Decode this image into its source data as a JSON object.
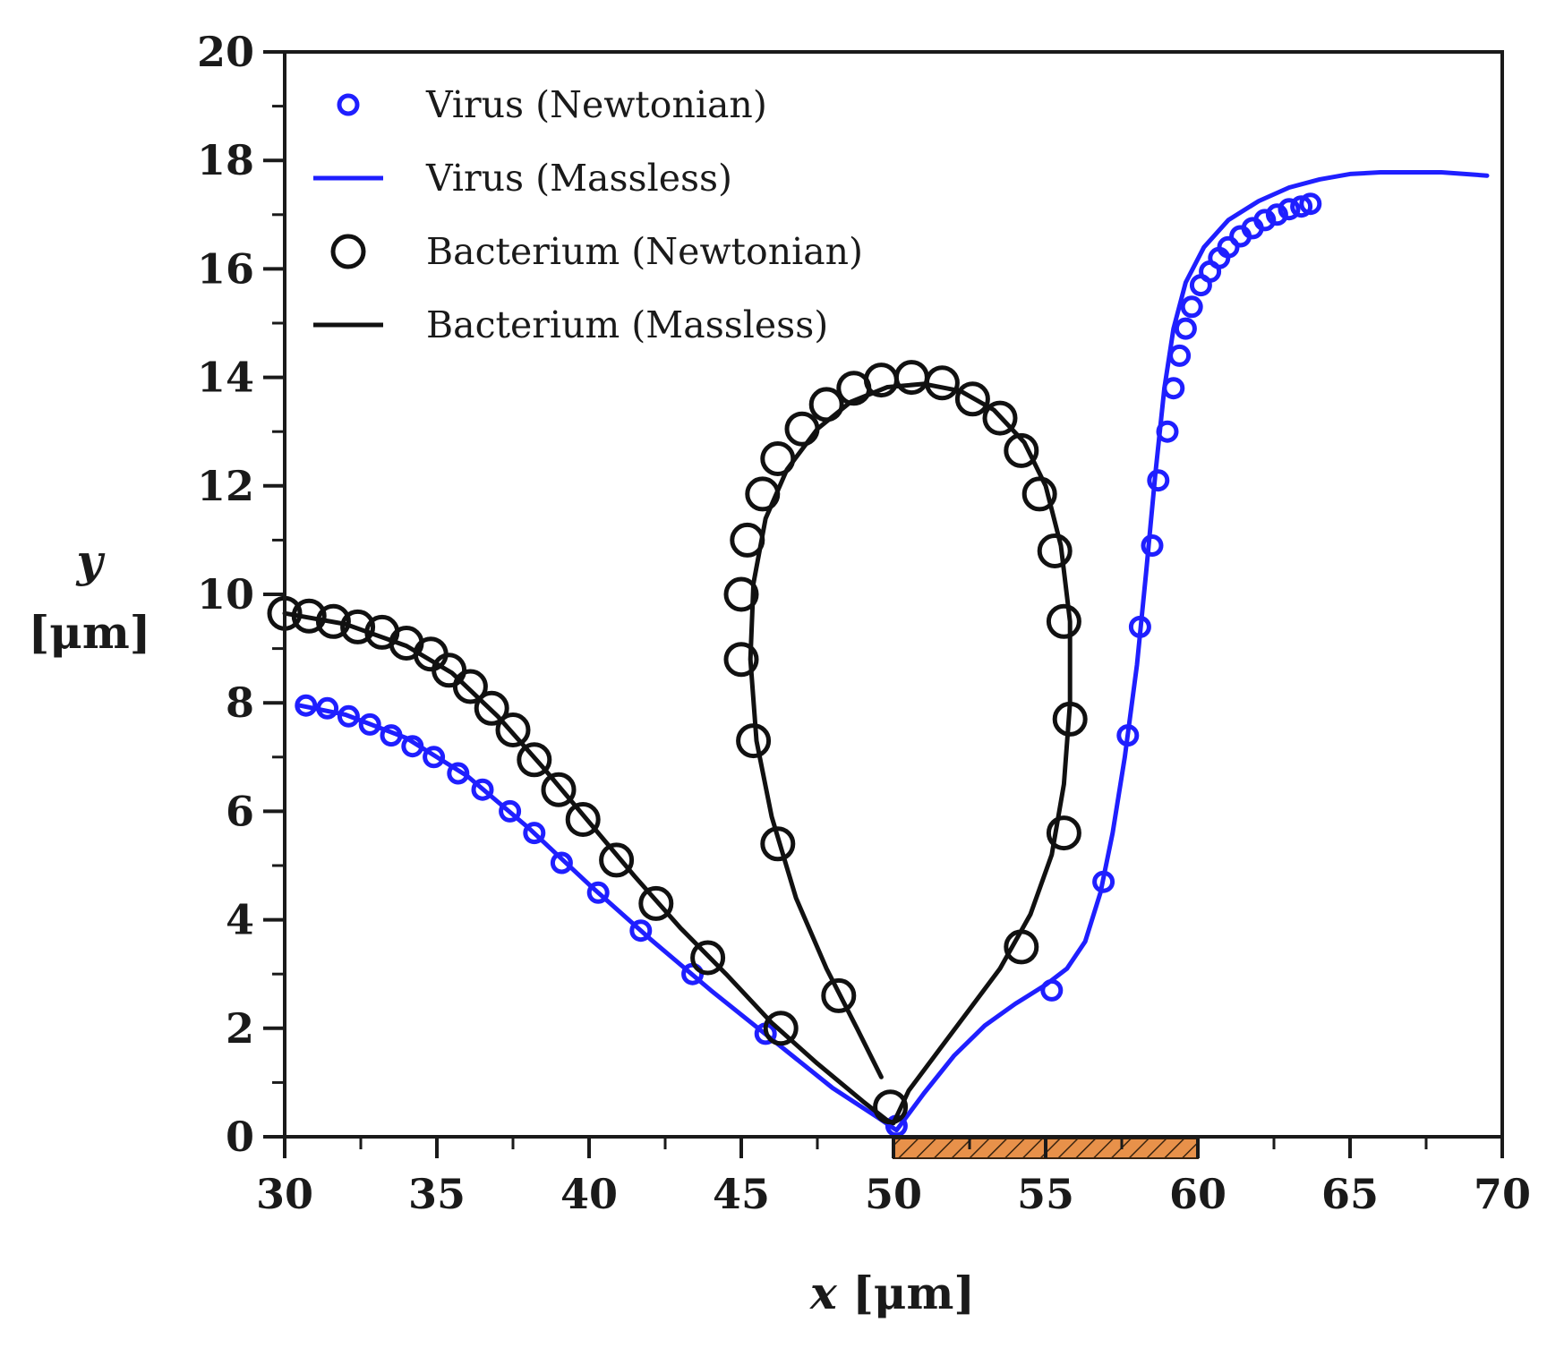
{
  "chart_data": {
    "type": "line",
    "title": "",
    "xlabel": {
      "var": "x",
      "unit": " [μm]"
    },
    "ylabel": {
      "var": "y",
      "unit": "[μm]"
    },
    "xlim": [
      30,
      70
    ],
    "ylim": [
      0,
      20
    ],
    "xticks": [
      "30",
      "35",
      "40",
      "45",
      "50",
      "55",
      "60",
      "65",
      "70"
    ],
    "yticks": [
      "0",
      "2",
      "4",
      "6",
      "8",
      "10",
      "12",
      "14",
      "16",
      "18",
      "20"
    ],
    "grid": false,
    "legend_position": "top-left",
    "hatched_region": {
      "x_start": 50,
      "x_end": 60,
      "color": "#e8914a"
    },
    "series": [
      {
        "name": "Virus (Newtonian)",
        "style": "markers",
        "marker": "small-circle",
        "color": "#1f1fff",
        "points": [
          [
            30.7,
            7.95
          ],
          [
            31.4,
            7.9
          ],
          [
            32.1,
            7.75
          ],
          [
            32.8,
            7.6
          ],
          [
            33.5,
            7.4
          ],
          [
            34.2,
            7.2
          ],
          [
            34.9,
            7.0
          ],
          [
            35.7,
            6.7
          ],
          [
            36.5,
            6.4
          ],
          [
            37.4,
            6.0
          ],
          [
            38.2,
            5.6
          ],
          [
            39.1,
            5.05
          ],
          [
            40.3,
            4.5
          ],
          [
            41.7,
            3.8
          ],
          [
            43.4,
            3.0
          ],
          [
            45.8,
            1.9
          ],
          [
            50.1,
            0.2
          ],
          [
            55.2,
            2.7
          ],
          [
            56.9,
            4.7
          ],
          [
            57.7,
            7.4
          ],
          [
            58.1,
            9.4
          ],
          [
            58.5,
            10.9
          ],
          [
            58.7,
            12.1
          ],
          [
            59.0,
            13.0
          ],
          [
            59.2,
            13.8
          ],
          [
            59.4,
            14.4
          ],
          [
            59.6,
            14.9
          ],
          [
            59.8,
            15.3
          ],
          [
            60.1,
            15.7
          ],
          [
            60.4,
            15.95
          ],
          [
            60.7,
            16.2
          ],
          [
            61.0,
            16.4
          ],
          [
            61.4,
            16.6
          ],
          [
            61.8,
            16.75
          ],
          [
            62.2,
            16.9
          ],
          [
            62.6,
            17.0
          ],
          [
            63.0,
            17.1
          ],
          [
            63.4,
            17.15
          ],
          [
            63.7,
            17.2
          ]
        ]
      },
      {
        "name": "Virus (Massless)",
        "style": "line",
        "color": "#1f1fff",
        "points": [
          [
            30.5,
            7.95
          ],
          [
            32,
            7.78
          ],
          [
            34,
            7.35
          ],
          [
            36,
            6.65
          ],
          [
            38,
            5.7
          ],
          [
            40,
            4.65
          ],
          [
            42,
            3.65
          ],
          [
            44,
            2.7
          ],
          [
            46,
            1.8
          ],
          [
            48,
            0.9
          ],
          [
            49.5,
            0.35
          ],
          [
            50.1,
            0.12
          ],
          [
            51,
            0.8
          ],
          [
            52,
            1.5
          ],
          [
            53,
            2.05
          ],
          [
            54,
            2.45
          ],
          [
            55,
            2.8
          ],
          [
            55.7,
            3.1
          ],
          [
            56.3,
            3.6
          ],
          [
            56.8,
            4.5
          ],
          [
            57.2,
            5.6
          ],
          [
            57.6,
            7.0
          ],
          [
            58.0,
            8.7
          ],
          [
            58.3,
            10.4
          ],
          [
            58.6,
            12.2
          ],
          [
            58.9,
            13.8
          ],
          [
            59.2,
            14.9
          ],
          [
            59.6,
            15.75
          ],
          [
            60.2,
            16.4
          ],
          [
            61,
            16.9
          ],
          [
            62,
            17.25
          ],
          [
            63,
            17.5
          ],
          [
            64,
            17.65
          ],
          [
            65,
            17.75
          ],
          [
            66,
            17.78
          ],
          [
            68,
            17.78
          ],
          [
            69.5,
            17.72
          ]
        ]
      },
      {
        "name": "Bacterium (Newtonian)",
        "style": "markers",
        "marker": "large-circle",
        "color": "#111111",
        "points": [
          [
            30.0,
            9.65
          ],
          [
            30.8,
            9.6
          ],
          [
            31.6,
            9.5
          ],
          [
            32.4,
            9.4
          ],
          [
            33.2,
            9.3
          ],
          [
            34.0,
            9.1
          ],
          [
            34.8,
            8.9
          ],
          [
            35.4,
            8.6
          ],
          [
            36.1,
            8.3
          ],
          [
            36.8,
            7.9
          ],
          [
            37.5,
            7.5
          ],
          [
            38.2,
            6.95
          ],
          [
            39.0,
            6.4
          ],
          [
            39.8,
            5.85
          ],
          [
            40.9,
            5.1
          ],
          [
            42.2,
            4.3
          ],
          [
            43.9,
            3.3
          ],
          [
            46.3,
            2.0
          ],
          [
            48.2,
            2.6
          ],
          [
            49.9,
            0.55
          ],
          [
            46.2,
            5.4
          ],
          [
            45.4,
            7.3
          ],
          [
            45.0,
            8.8
          ],
          [
            45.0,
            10.0
          ],
          [
            45.2,
            11.0
          ],
          [
            45.7,
            11.85
          ],
          [
            46.2,
            12.5
          ],
          [
            47.0,
            13.05
          ],
          [
            47.8,
            13.5
          ],
          [
            48.7,
            13.8
          ],
          [
            49.6,
            13.95
          ],
          [
            50.6,
            14.0
          ],
          [
            51.6,
            13.9
          ],
          [
            52.6,
            13.6
          ],
          [
            53.5,
            13.25
          ],
          [
            54.2,
            12.65
          ],
          [
            54.8,
            11.85
          ],
          [
            55.3,
            10.8
          ],
          [
            55.6,
            9.5
          ],
          [
            55.8,
            7.7
          ],
          [
            55.6,
            5.6
          ],
          [
            54.2,
            3.5
          ]
        ]
      },
      {
        "name": "Bacterium (Massless)",
        "style": "line",
        "color": "#111111",
        "points_segments": [
          [
            [
              30,
              9.65
            ],
            [
              32,
              9.45
            ],
            [
              34,
              9.05
            ],
            [
              35.5,
              8.55
            ],
            [
              37,
              7.75
            ],
            [
              38.5,
              6.8
            ],
            [
              40,
              5.8
            ],
            [
              41.5,
              4.8
            ],
            [
              43,
              3.85
            ],
            [
              44.5,
              3.0
            ],
            [
              46,
              2.1
            ],
            [
              47.5,
              1.35
            ],
            [
              49,
              0.65
            ],
            [
              49.8,
              0.3
            ],
            [
              50,
              0.25
            ],
            [
              50.5,
              0.85
            ],
            [
              51.5,
              1.6
            ],
            [
              52.5,
              2.35
            ],
            [
              53.5,
              3.1
            ],
            [
              54.5,
              4.1
            ],
            [
              55.2,
              5.2
            ],
            [
              55.6,
              6.5
            ],
            [
              55.8,
              8.0
            ],
            [
              55.8,
              9.5
            ],
            [
              55.5,
              10.9
            ],
            [
              55.0,
              12.0
            ],
            [
              54.3,
              12.8
            ],
            [
              53.3,
              13.4
            ],
            [
              52.2,
              13.75
            ],
            [
              51,
              13.88
            ],
            [
              49.8,
              13.82
            ],
            [
              48.6,
              13.55
            ],
            [
              47.5,
              13.05
            ],
            [
              46.5,
              12.3
            ],
            [
              45.8,
              11.4
            ],
            [
              45.4,
              10.2
            ],
            [
              45.3,
              8.8
            ],
            [
              45.5,
              7.3
            ],
            [
              46.0,
              5.9
            ],
            [
              46.8,
              4.4
            ],
            [
              47.8,
              3.1
            ],
            [
              48.8,
              2.0
            ],
            [
              49.6,
              1.1
            ]
          ]
        ]
      }
    ]
  }
}
